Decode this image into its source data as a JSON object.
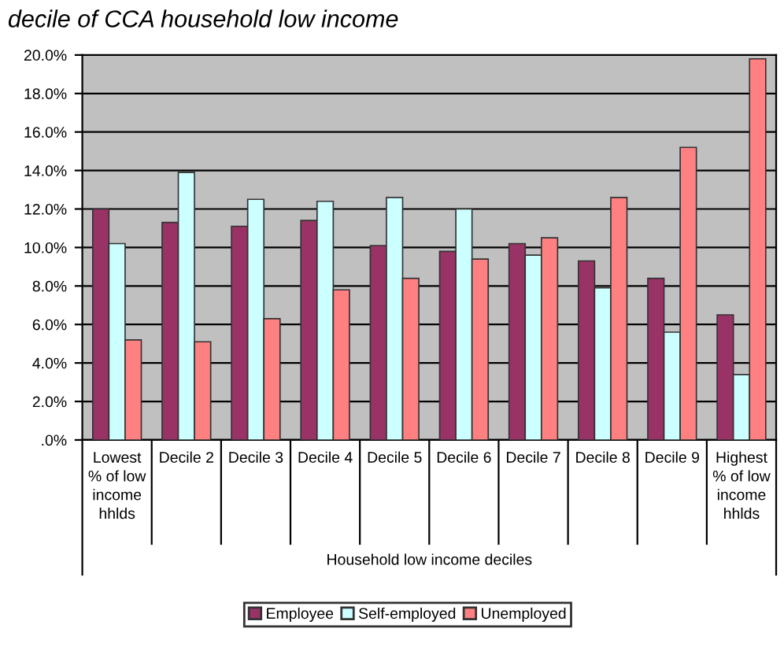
{
  "chart_data": {
    "type": "bar",
    "title": "decile of CCA household low income",
    "xlabel": "Household low income deciles",
    "categories": [
      "Lowest\n% of low\nincome\nhhlds",
      "Decile 2",
      "Decile 3",
      "Decile 4",
      "Decile 5",
      "Decile 6",
      "Decile 7",
      "Decile 8",
      "Decile 9",
      "Highest\n% of low\nincome\nhhlds"
    ],
    "series": [
      {
        "name": "Employee",
        "color": "#993366",
        "values": [
          12.0,
          11.3,
          11.1,
          11.4,
          10.1,
          9.8,
          10.2,
          9.3,
          8.4,
          6.5
        ]
      },
      {
        "name": "Self-employed",
        "color": "#ccffff",
        "values": [
          10.2,
          13.9,
          12.5,
          12.4,
          12.6,
          12.0,
          9.6,
          7.9,
          5.6,
          3.4
        ]
      },
      {
        "name": "Unemployed",
        "color": "#ff8080",
        "values": [
          5.2,
          5.1,
          6.3,
          7.8,
          8.4,
          9.4,
          10.5,
          12.6,
          15.2,
          19.8
        ]
      }
    ],
    "ylim": [
      0,
      20
    ],
    "yticks": [
      {
        "value": 0,
        "label": ".0%"
      },
      {
        "value": 2,
        "label": "2.0%"
      },
      {
        "value": 4,
        "label": "4.0%"
      },
      {
        "value": 6,
        "label": "6.0%"
      },
      {
        "value": 8,
        "label": "8.0%"
      },
      {
        "value": 10,
        "label": "10.0%"
      },
      {
        "value": 12,
        "label": "12.0%"
      },
      {
        "value": 14,
        "label": "14.0%"
      },
      {
        "value": 16,
        "label": "16.0%"
      },
      {
        "value": 18,
        "label": "18.0%"
      },
      {
        "value": 20,
        "label": "20.0%"
      }
    ],
    "grid": "y",
    "legend": "bottom"
  }
}
